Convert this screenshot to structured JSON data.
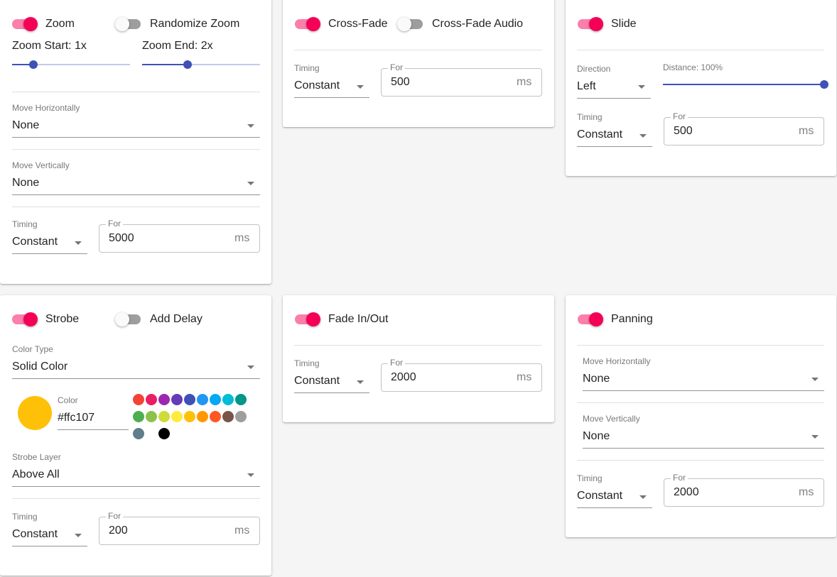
{
  "cards": [
    {
      "toggles": [
        {
          "label": "Zoom",
          "on": true
        },
        {
          "label": "Randomize Zoom",
          "on": false
        }
      ],
      "sliders": [
        "Zoom Start: 1x",
        "Zoom End: 2x"
      ],
      "selects": [
        {
          "label": "Move Horizontally",
          "value": "None"
        },
        {
          "label": "Move Vertically",
          "value": "None"
        }
      ],
      "timing": {
        "label": "Timing",
        "value": "Constant",
        "for": "For",
        "duration": 5000,
        "unit": "ms"
      }
    },
    {
      "toggles": [
        {
          "label": "Cross-Fade",
          "on": true
        },
        {
          "label": "Cross-Fade Audio",
          "on": false
        }
      ],
      "timing": {
        "label": "Timing",
        "value": "Constant",
        "for": "For",
        "duration": 500,
        "unit": "ms"
      }
    },
    {
      "toggles": [
        {
          "label": "Slide",
          "on": true
        }
      ],
      "selects": [
        {
          "label": "Direction",
          "value": "Left"
        }
      ],
      "sliders": [
        "Distance: 100%"
      ],
      "timing": {
        "label": "Timing",
        "value": "Constant",
        "for": "For",
        "duration": 500,
        "unit": "ms"
      }
    },
    {
      "toggles": [
        {
          "label": "Strobe",
          "on": true
        },
        {
          "label": "Add Delay",
          "on": false
        }
      ],
      "selects": [
        {
          "label": "Color Type",
          "value": "Solid Color"
        },
        {
          "label": "Strobe Layer",
          "value": "Above All"
        }
      ],
      "color": {
        "label": "Color",
        "value": "#ffc107"
      },
      "swatches": [
        "#f44336",
        "#e91e63",
        "#9c27b0",
        "#673ab7",
        "#3f51b5",
        "#2196f3",
        "#03a9f4",
        "#00bcd4",
        "#009688",
        "#4caf50",
        "#8bc34a",
        "#cddc39",
        "#ffeb3b",
        "#ffc107",
        "#ff9800",
        "#ff5722",
        "#795548",
        "#9e9e9e",
        "#607d8b",
        "#ffffff",
        "#000000"
      ],
      "timing": {
        "label": "Timing",
        "value": "Constant",
        "for": "For",
        "duration": 200,
        "unit": "ms"
      }
    },
    {
      "toggles": [
        {
          "label": "Fade In/Out",
          "on": true
        }
      ],
      "timing": {
        "label": "Timing",
        "value": "Constant",
        "for": "For",
        "duration": 2000,
        "unit": "ms"
      }
    },
    {
      "toggles": [
        {
          "label": "Panning",
          "on": true
        }
      ],
      "selects": [
        {
          "label": "Move Horizontally",
          "value": "None"
        },
        {
          "label": "Move Vertically",
          "value": "None"
        }
      ],
      "timing": {
        "label": "Timing",
        "value": "Constant",
        "for": "For",
        "duration": 2000,
        "unit": "ms"
      }
    }
  ]
}
